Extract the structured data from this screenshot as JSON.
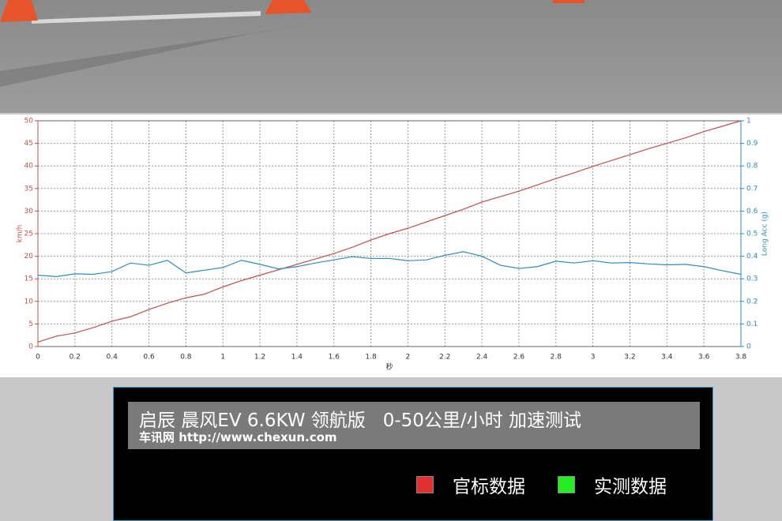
{
  "chart_data": {
    "type": "line",
    "x": [
      0,
      0.1,
      0.2,
      0.3,
      0.4,
      0.5,
      0.6,
      0.7,
      0.8,
      0.9,
      1,
      1.1,
      1.2,
      1.3,
      1.4,
      1.5,
      1.6,
      1.7,
      1.8,
      1.9,
      2,
      2.1,
      2.2,
      2.3,
      2.4,
      2.5,
      2.6,
      2.7,
      2.8,
      2.9,
      3,
      3.1,
      3.2,
      3.3,
      3.4,
      3.5,
      3.6,
      3.7,
      3.8
    ],
    "series": [
      {
        "color": "#c0504d",
        "values": [
          1,
          2.3,
          3,
          4.2,
          5.6,
          6.6,
          8.2,
          9.6,
          10.8,
          11.6,
          13.2,
          14.6,
          15.8,
          17,
          18.2,
          19.4,
          20.6,
          22,
          23.6,
          25,
          26.2,
          27.6,
          29,
          30.4,
          32,
          33.2,
          34.4,
          35.8,
          37.2,
          38.5,
          39.9,
          41.2,
          42.5,
          43.8,
          45,
          46.2,
          47.6,
          48.8,
          50
        ]
      },
      {
        "color": "#2e8bc0",
        "axis": "y2",
        "values": [
          0.316,
          0.31,
          0.322,
          0.32,
          0.332,
          0.37,
          0.36,
          0.382,
          0.326,
          0.338,
          0.35,
          0.382,
          0.364,
          0.344,
          0.354,
          0.37,
          0.384,
          0.398,
          0.39,
          0.39,
          0.38,
          0.384,
          0.404,
          0.42,
          0.4,
          0.36,
          0.346,
          0.354,
          0.378,
          0.37,
          0.38,
          0.37,
          0.372,
          0.366,
          0.362,
          0.364,
          0.354,
          0.336,
          0.32
        ]
      }
    ],
    "x_label": "秒",
    "y_label": "km/h",
    "y2_label": "Long Acc (g)",
    "xlim": [
      0,
      3.8
    ],
    "xticks": [
      0,
      0.2,
      0.4,
      0.6,
      0.8,
      1,
      1.2,
      1.4,
      1.6,
      1.8,
      2,
      2.2,
      2.4,
      2.6,
      2.8,
      3,
      3.2,
      3.4,
      3.6,
      3.8
    ],
    "ylim": [
      0,
      50
    ],
    "yticks": [
      0,
      5,
      10,
      15,
      20,
      25,
      30,
      35,
      40,
      45,
      50
    ],
    "y2lim": [
      0,
      1
    ],
    "y2ticks": [
      0,
      0.1,
      0.2,
      0.3,
      0.4,
      0.5,
      0.6,
      0.7,
      0.8,
      0.9,
      1
    ],
    "grid": true
  },
  "panel": {
    "title": "启辰 晨风EV 6.6KW 领航版   0-50公里/小时 加速测试",
    "site": "车讯网 http://www.chexun.com",
    "legend": [
      {
        "label": "官标数据",
        "color": "#e03030"
      },
      {
        "label": "实测数据",
        "color": "#22ee22"
      }
    ]
  }
}
